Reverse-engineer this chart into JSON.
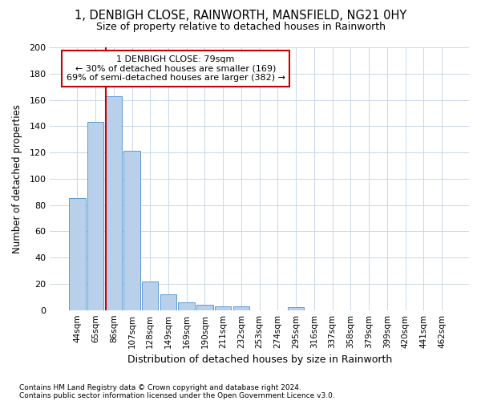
{
  "title": "1, DENBIGH CLOSE, RAINWORTH, MANSFIELD, NG21 0HY",
  "subtitle": "Size of property relative to detached houses in Rainworth",
  "xlabel": "Distribution of detached houses by size in Rainworth",
  "ylabel": "Number of detached properties",
  "footnote1": "Contains HM Land Registry data © Crown copyright and database right 2024.",
  "footnote2": "Contains public sector information licensed under the Open Government Licence v3.0.",
  "bar_labels": [
    "44sqm",
    "65sqm",
    "86sqm",
    "107sqm",
    "128sqm",
    "149sqm",
    "169sqm",
    "190sqm",
    "211sqm",
    "232sqm",
    "253sqm",
    "274sqm",
    "295sqm",
    "316sqm",
    "337sqm",
    "358sqm",
    "379sqm",
    "399sqm",
    "420sqm",
    "441sqm",
    "462sqm"
  ],
  "bar_values": [
    85,
    143,
    163,
    121,
    22,
    12,
    6,
    4,
    3,
    3,
    0,
    0,
    2,
    0,
    0,
    0,
    0,
    0,
    0,
    0,
    0
  ],
  "bar_color": "#b8d0ea",
  "bar_edge_color": "#5b9bd5",
  "ylim": [
    0,
    200
  ],
  "yticks": [
    0,
    20,
    40,
    60,
    80,
    100,
    120,
    140,
    160,
    180,
    200
  ],
  "property_sqm": 79,
  "property_label": "1 DENBIGH CLOSE: 79sqm",
  "annotation_line1": "← 30% of detached houses are smaller (169)",
  "annotation_line2": "69% of semi-detached houses are larger (382) →",
  "vline_color": "#cc0000",
  "annotation_box_color": "#cc0000",
  "background_color": "#ffffff",
  "grid_color": "#c8d8e8"
}
